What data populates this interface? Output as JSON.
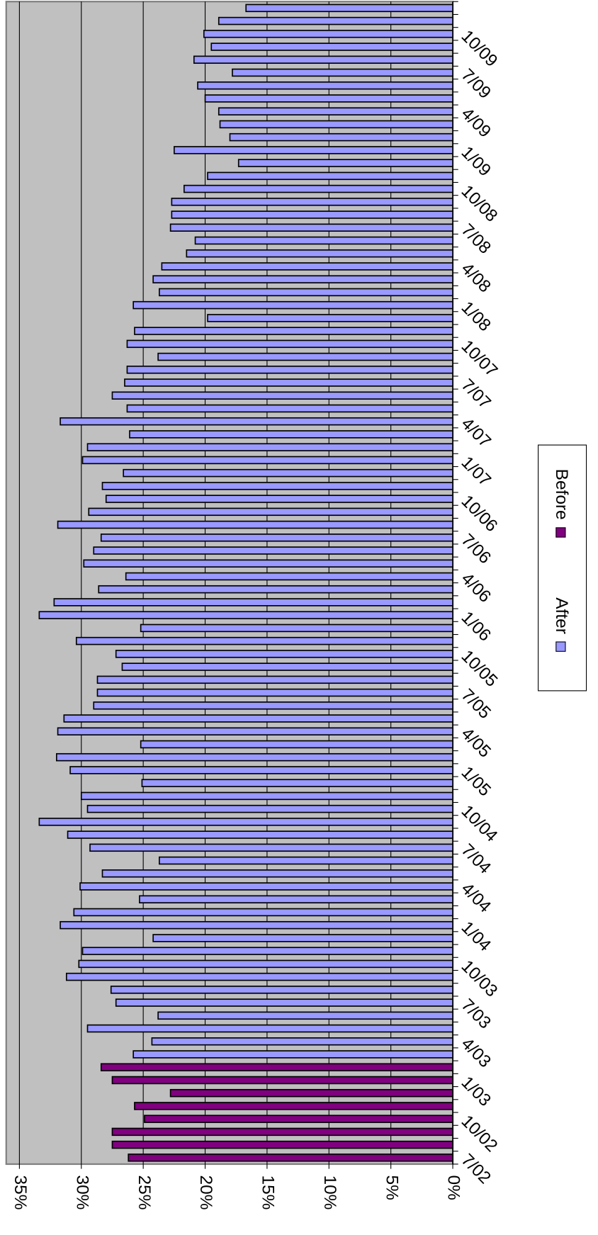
{
  "chart_data": {
    "type": "bar",
    "orientation": "rotated",
    "categories": [
      "7/02",
      null,
      null,
      "10/02",
      null,
      null,
      "1/03",
      null,
      null,
      "4/03",
      null,
      null,
      "7/03",
      null,
      null,
      "10/03",
      null,
      null,
      "1/04",
      null,
      null,
      "4/04",
      null,
      null,
      "7/04",
      null,
      null,
      "10/04",
      null,
      null,
      "1/05",
      null,
      null,
      "4/05",
      null,
      null,
      "7/05",
      null,
      null,
      "10/05",
      null,
      null,
      "1/06",
      null,
      null,
      "4/06",
      null,
      null,
      "7/06",
      null,
      null,
      "10/06",
      null,
      null,
      "1/07",
      null,
      null,
      "4/07",
      null,
      null,
      "7/07",
      null,
      null,
      "10/07",
      null,
      null,
      "1/08",
      null,
      null,
      "4/08",
      null,
      null,
      "7/08",
      null,
      null,
      "10/08",
      null,
      null,
      "1/09",
      null,
      null,
      "4/09",
      null,
      null,
      "7/09",
      null,
      null,
      "10/09",
      null,
      null
    ],
    "series": [
      {
        "name": "After",
        "color": "#9999ff",
        "values": [
          null,
          null,
          null,
          null,
          null,
          null,
          null,
          null,
          25.8,
          24.3,
          29.5,
          23.8,
          27.2,
          27.6,
          31.2,
          30.2,
          29.9,
          24.2,
          31.7,
          30.6,
          25.3,
          30.1,
          28.3,
          23.7,
          29.3,
          31.1,
          33.4,
          29.5,
          30.0,
          25.1,
          30.9,
          32.0,
          25.2,
          31.9,
          31.4,
          29.0,
          28.7,
          28.7,
          26.7,
          27.2,
          30.4,
          25.2,
          33.4,
          32.2,
          28.6,
          26.4,
          29.8,
          29.0,
          28.4,
          31.9,
          29.4,
          28.0,
          28.3,
          26.6,
          29.9,
          29.5,
          26.1,
          31.7,
          26.3,
          27.5,
          26.5,
          26.3,
          23.8,
          26.3,
          25.7,
          19.8,
          25.8,
          23.7,
          24.2,
          23.5,
          21.5,
          20.8,
          22.8,
          22.7,
          22.7,
          21.7,
          19.8,
          17.3,
          22.5,
          18.0,
          18.8,
          18.9,
          20.0,
          20.6,
          17.8,
          20.9,
          19.5,
          20.1,
          18.9,
          16.7
        ]
      },
      {
        "name": "Before",
        "color": "#800080",
        "values": [
          26.2,
          27.5,
          27.5,
          24.9,
          25.7,
          22.8,
          27.5,
          28.4,
          null,
          null,
          null,
          null,
          null,
          null,
          null,
          null,
          null,
          null,
          null,
          null,
          null,
          null,
          null,
          null,
          null,
          null,
          null,
          null,
          null,
          null,
          null,
          null,
          null,
          null,
          null,
          null,
          null,
          null,
          null,
          null,
          null,
          null,
          null,
          null,
          null,
          null,
          null,
          null,
          null,
          null,
          null,
          null,
          null,
          null,
          null,
          null,
          null,
          null,
          null,
          null,
          null,
          null,
          null,
          null,
          null,
          null,
          null,
          null,
          null,
          null,
          null,
          null,
          null,
          null,
          null,
          null,
          null,
          null,
          null,
          null,
          null,
          null,
          null,
          null,
          null,
          null,
          null,
          null,
          null,
          null
        ]
      }
    ],
    "ylim": [
      0,
      35
    ],
    "yticks": [
      {
        "value": 0,
        "label": "0%"
      },
      {
        "value": 5,
        "label": "5%"
      },
      {
        "value": 10,
        "label": "10%"
      },
      {
        "value": 15,
        "label": "15%"
      },
      {
        "value": 20,
        "label": "20%"
      },
      {
        "value": 25,
        "label": "25%"
      },
      {
        "value": 30,
        "label": "30%"
      },
      {
        "value": 35,
        "label": "35%"
      }
    ],
    "grid": true,
    "legend": "right",
    "plot_background": "#c0c0c0"
  }
}
